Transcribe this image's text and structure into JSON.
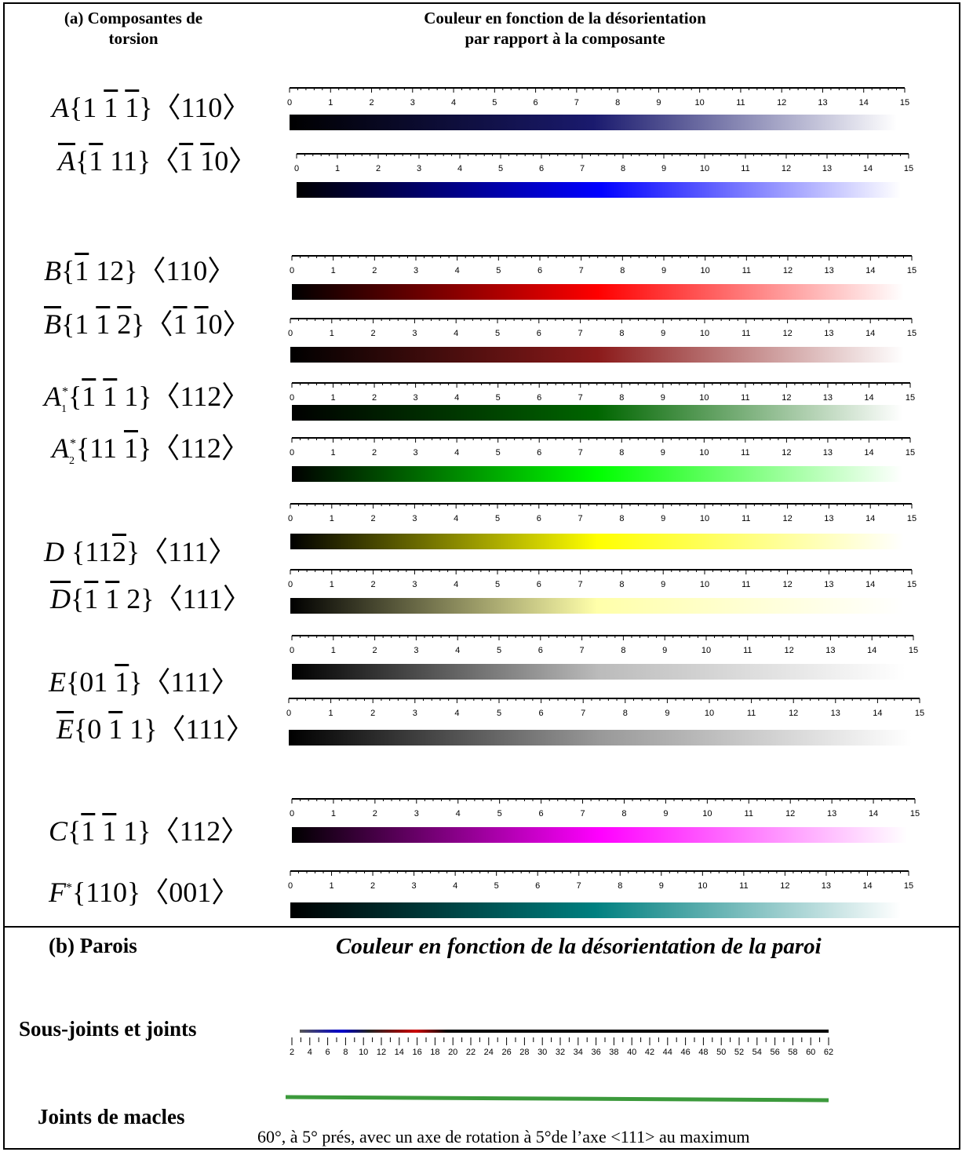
{
  "header": {
    "col1_line1": "(a) Composantes de",
    "col1_line2": "torsion",
    "col2_line1": "Couleur en fonction de la désorientation",
    "col2_line2": "par rapport à la composante"
  },
  "section_b": {
    "title": "(b) Parois",
    "subtitle": "Couleur en fonction de la désorientation de la paroi",
    "wall1_label": "Sous-joints et joints",
    "wall2_label": "Joints de macles",
    "twin_note": "60°, à 5° prés, avec un axe de rotation à 5°de l’axe <111>  au maximum",
    "wall_ticks": [
      "2",
      "4",
      "6",
      "8",
      "10",
      "12",
      "14",
      "16",
      "18",
      "20",
      "22",
      "24",
      "26",
      "28",
      "30",
      "32",
      "34",
      "36",
      "38",
      "40",
      "42",
      "44",
      "46",
      "48",
      "50",
      "52",
      "54",
      "56",
      "58",
      "60",
      "62"
    ],
    "twin_color": "#3c9a3c"
  },
  "scale_ticks": [
    "0",
    "1",
    "2",
    "3",
    "4",
    "5",
    "6",
    "7",
    "8",
    "9",
    "10",
    "11",
    "12",
    "13",
    "14",
    "15"
  ],
  "components": [
    {
      "name": "A",
      "sup": "",
      "sub": "",
      "bar": false,
      "plane": [
        {
          "t": "{",
          "o": false
        },
        {
          "t": "1",
          "o": false
        },
        {
          "t": "1",
          "o": true
        },
        {
          "t": "1",
          "o": true
        },
        {
          "t": "}",
          "o": false
        }
      ],
      "dir": "110",
      "dir_bar": [
        false,
        false,
        false
      ],
      "color": "#1a1a6e",
      "end": "#ffffff",
      "mid": "#000050"
    },
    {
      "name": "A",
      "sup": "",
      "sub": "",
      "bar": true,
      "plane": "111",
      "dir": "110",
      "color": "#0000ff"
    },
    {
      "name": "B",
      "bar": false,
      "plane": "112",
      "dir": "110",
      "color": "#ff0000"
    },
    {
      "name": "B",
      "bar": true,
      "plane": "112",
      "dir": "110",
      "color": "#8b1a1a"
    },
    {
      "name": "A",
      "sup": "*",
      "sub": "1",
      "bar": false,
      "plane": "111",
      "dir": "112",
      "color": "#006600"
    },
    {
      "name": "A",
      "sup": "*",
      "sub": "2",
      "bar": false,
      "plane": "111",
      "dir": "112",
      "color": "#00ff00"
    },
    {
      "name": "D",
      "bar": false,
      "plane": "112",
      "dir": "111",
      "color": "#ffff00"
    },
    {
      "name": "D",
      "bar": true,
      "plane": "112",
      "dir": "111",
      "color": "#ffffaa"
    },
    {
      "name": "E",
      "bar": false,
      "plane": "011",
      "dir": "111",
      "color": "#bbbbbb"
    },
    {
      "name": "E",
      "bar": true,
      "plane": "011",
      "dir": "111",
      "color": "#999999"
    },
    {
      "name": "C",
      "bar": false,
      "plane": "111",
      "dir": "112",
      "color": "#ff00ff"
    },
    {
      "name": "F",
      "sup": "*",
      "bar": false,
      "plane": "110",
      "dir": "001",
      "color": "#008080"
    }
  ]
}
